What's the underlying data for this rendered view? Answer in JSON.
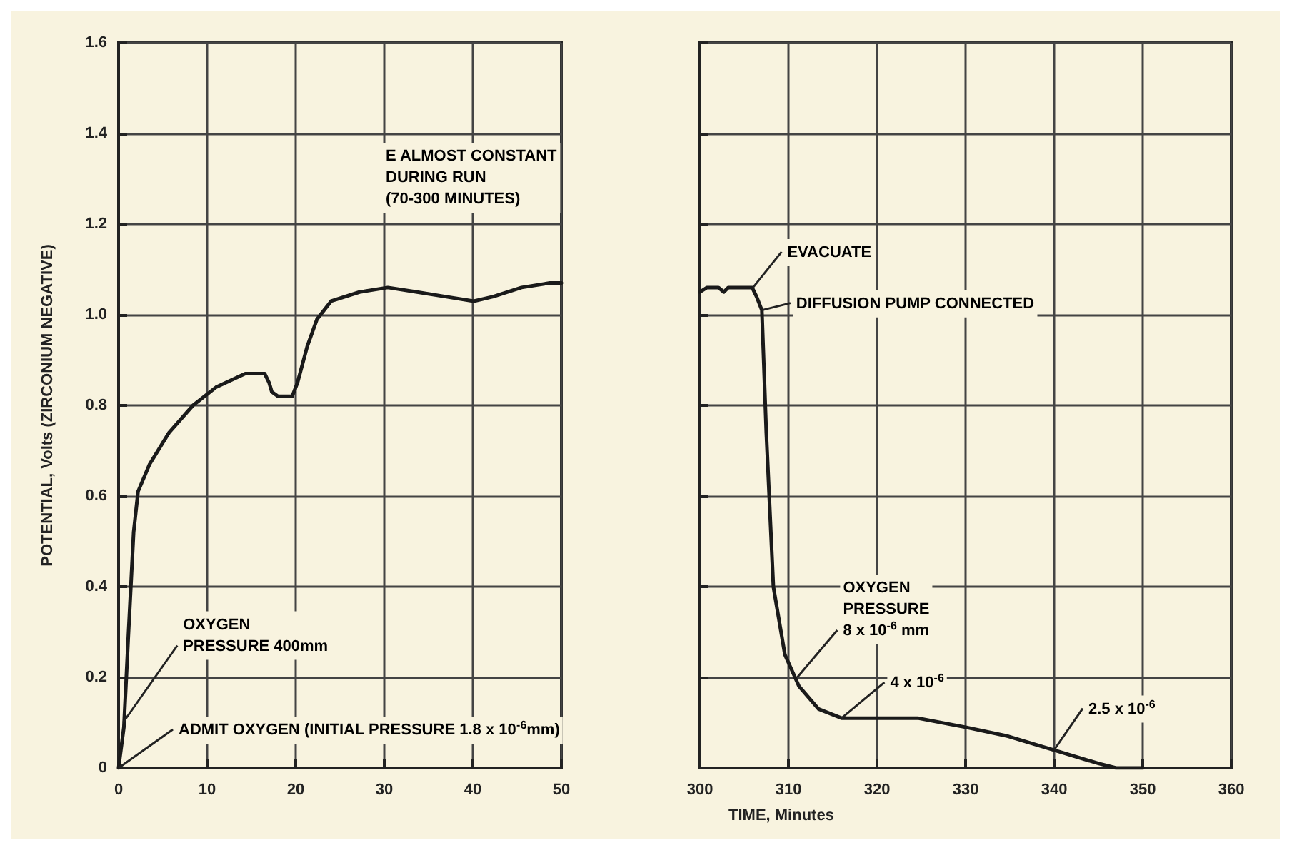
{
  "chart_data": [
    {
      "type": "line",
      "ylabel": "POTENTIAL, Volts (ZIRCONIUM NEGATIVE)",
      "xlim": [
        0,
        50
      ],
      "xticks": [
        0,
        10,
        20,
        30,
        40,
        50
      ],
      "ylim": [
        0,
        1.6
      ],
      "yticks": [
        0,
        0.2,
        0.4,
        0.6,
        0.8,
        {
          "value": 1,
          "label": "1.0"
        },
        1.2,
        1.4,
        1.6
      ],
      "grid": true,
      "marker": "none",
      "line_style": "solid",
      "series": [
        {
          "color": "#1a1a1a",
          "x": [
            0,
            0.6,
            1.1,
            1.7,
            2.2,
            3.5,
            5.7,
            8.4,
            11,
            14.3,
            16.5,
            17,
            17.3,
            18,
            19.6,
            20.2,
            21.3,
            22.4,
            24,
            27.2,
            30.4,
            33.7,
            36.9,
            40.1,
            42.3,
            45.5,
            48.7,
            50
          ],
          "values": [
            0,
            0.09,
            0.29,
            0.52,
            0.61,
            0.67,
            0.74,
            0.8,
            0.84,
            0.87,
            0.87,
            0.85,
            0.83,
            0.82,
            0.82,
            0.85,
            0.93,
            0.99,
            1.03,
            1.05,
            1.06,
            1.05,
            1.04,
            1.03,
            1.04,
            1.06,
            1.07,
            1.07
          ]
        }
      ],
      "annotations": [
        "E ALMOST CONSTANT\nDURING RUN\n(70-300 MINUTES)",
        {
          "text": "OXYGEN\nPRESSURE 400mm",
          "x": 0.5,
          "y": 0.1
        },
        {
          "text": "ADMIT OXYGEN (INITIAL PRESSURE 1.8 x 10$^{-6}$mm)",
          "x": 0,
          "y": 0
        }
      ]
    },
    {
      "type": "line",
      "xlabel": "TIME, Minutes",
      "xlim": [
        300,
        360
      ],
      "xticks": [
        300,
        310,
        320,
        330,
        340,
        350,
        360
      ],
      "ylim": [
        0,
        1.6
      ],
      "yticks": [
        0,
        0.2,
        0.4,
        0.6,
        0.8,
        1,
        1.2,
        1.4,
        1.6
      ],
      "grid": true,
      "marker": "none",
      "line_style": "solid",
      "tick_labels": "x",
      "series": [
        {
          "color": "#1a1a1a",
          "x": [
            300,
            300.8,
            302.1,
            302.7,
            303.2,
            305.9,
            306.4,
            307,
            307.5,
            308.3,
            309.6,
            311.2,
            313.4,
            316,
            319.7,
            324.6,
            330,
            334.8,
            339.9,
            345,
            347,
            350
          ],
          "values": [
            1.05,
            1.06,
            1.06,
            1.05,
            1.06,
            1.06,
            1.04,
            1.01,
            0.74,
            0.4,
            0.25,
            0.18,
            0.13,
            0.11,
            0.11,
            0.11,
            0.09,
            0.07,
            0.04,
            0.01,
            0,
            0
          ]
        }
      ],
      "annotations": [
        {
          "text": "EVACUATE",
          "x": 306,
          "y": 1.06
        },
        {
          "text": "DIFFUSION PUMP CONNECTED",
          "x": 307,
          "y": 1.01
        },
        {
          "text": "OXYGEN\nPRESSURE\n8 x 10$^{-6}$ mm",
          "x": 311,
          "y": 0.2
        },
        {
          "text": "4 x 10$^{-6}$",
          "x": 316,
          "y": 0.11
        },
        {
          "text": "2.5 x 10$^{-6}$",
          "x": 340,
          "y": 0.04
        }
      ]
    }
  ]
}
